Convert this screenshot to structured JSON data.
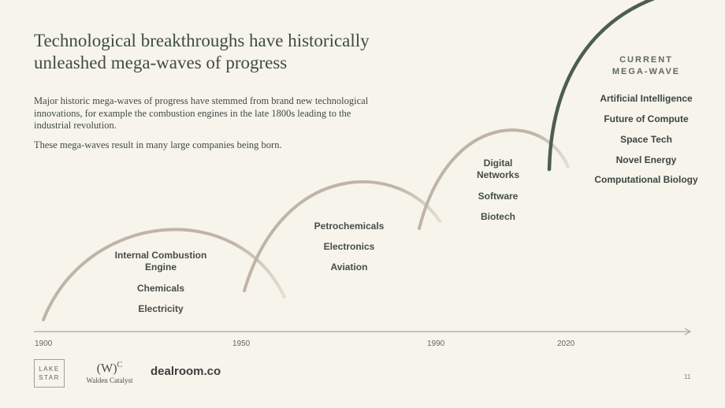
{
  "title": "Technological breakthroughs have historically unleashed mega-waves of progress",
  "paragraphs": [
    "Major historic mega-waves of progress have stemmed from brand new technological innovations, for example the combustion engines in the late 1800s leading to the industrial revolution.",
    "These mega-waves result in many large companies being born."
  ],
  "waves": [
    {
      "labels": [
        "Internal Combustion Engine",
        "Chemicals",
        "Electricity"
      ]
    },
    {
      "labels": [
        "Petrochemicals",
        "Electronics",
        "Aviation"
      ]
    },
    {
      "labels": [
        "Digital Networks",
        "Software",
        "Biotech"
      ]
    }
  ],
  "current_wave": {
    "heading_line1": "CURRENT",
    "heading_line2": "MEGA-WAVE",
    "items": [
      "Artificial Intelligence",
      "Future of Compute",
      "Space Tech",
      "Novel Energy",
      "Computational Biology"
    ]
  },
  "timeline_years": [
    "1900",
    "1950",
    "1990",
    "2020"
  ],
  "colors": {
    "wave": "#c0b4a6",
    "wave_fade": "#e2dccf",
    "current_wave": "#4d5e51",
    "axis": "#8f958f",
    "background": "#f7f4ec"
  },
  "logos": {
    "lake_star_line1": "LAKE",
    "lake_star_line2": "STAR",
    "walden_mark": "(W)",
    "walden_sup": "C",
    "walden_name": "Walden Catalyst",
    "dealroom": "dealroom.co"
  },
  "page_number": "11"
}
